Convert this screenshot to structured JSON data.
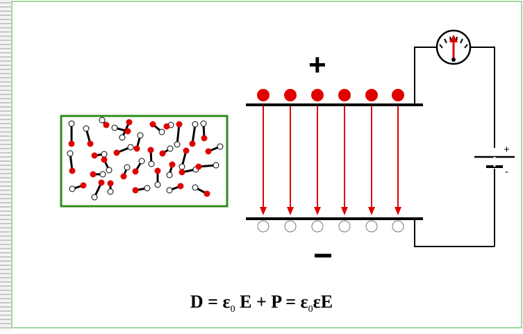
{
  "labels": {
    "plate_top_sign": "+",
    "plate_bottom_sign": "−",
    "battery_plus": "+",
    "battery_minus": "-"
  },
  "formula": {
    "D": "D",
    "eq1": " = ",
    "eps": "ε",
    "zero": "0",
    "E": "E",
    "plus": " + ",
    "P": "P",
    "eq2": " = ",
    "eps2": "ε",
    "zero2": "0",
    "epsE": "εE"
  },
  "colors": {
    "accent_green": "#2e8b1e",
    "charge_red": "#e00000",
    "frame_green": "#7ed07e",
    "stripes": "#c8c8c8"
  },
  "icons": [
    "voltmeter-icon",
    "battery-icon",
    "dipole-icon"
  ]
}
